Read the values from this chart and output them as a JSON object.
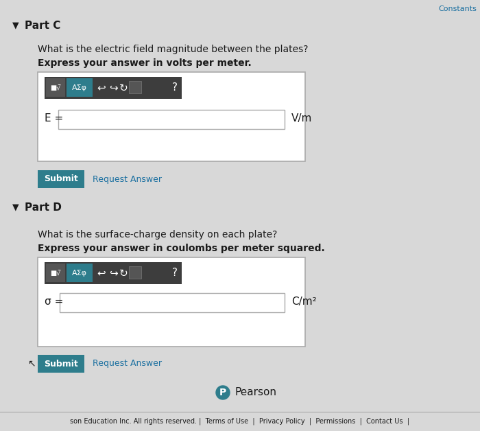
{
  "bg_color": "#d8d8d8",
  "white": "#ffffff",
  "dark_teal": "#2e7d8c",
  "toolbar_bg": "#4a4a4a",
  "toolbar_text": "#ffffff",
  "text_color": "#1a1a1a",
  "link_color": "#1a6fa0",
  "border_color": "#aaaaaa",
  "input_bg": "#ffffff",
  "part_c_label": "Part C",
  "part_c_q1": "What is the electric field magnitude between the plates?",
  "part_c_q2": "Express your answer in volts per meter.",
  "toolbar_symbols": "■√̅   ΑΣφ   ↩   ↪   ↻   ⊡   ?",
  "e_label": "E =",
  "e_unit": "V/m",
  "submit_label": "Submit",
  "request_label": "Request Answer",
  "part_d_label": "Part D",
  "part_d_q1": "What is the surface-charge density on each plate?",
  "part_d_q2": "Express your answer in coulombs per meter squared.",
  "sigma_label": "σ =",
  "sigma_unit": "C/m²",
  "pearson_text": "Pearson",
  "footer_text": "son Education Inc. All rights reserved. |  Terms of Use  |  Privacy Policy  |  Permissions  |  Contact Us  |",
  "top_right_text": "Constants"
}
